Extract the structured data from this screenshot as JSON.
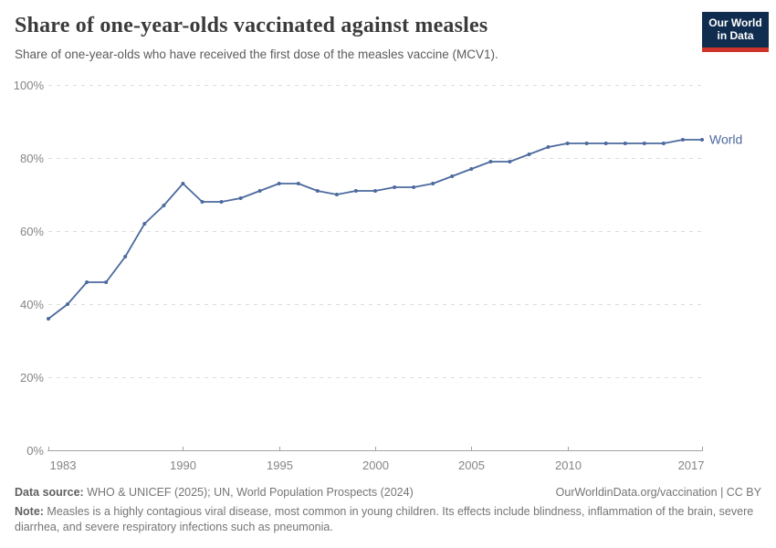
{
  "header": {
    "title": "Share of one-year-olds vaccinated against measles",
    "subtitle": "Share of one-year-olds who have received the first dose of the measles vaccine (MCV1).",
    "logo": {
      "line1": "Our World",
      "line2": "in Data"
    }
  },
  "chart_data": {
    "type": "line",
    "title": "Share of one-year-olds vaccinated against measles",
    "xlabel": "",
    "ylabel": "",
    "xlim": [
      1983,
      2017
    ],
    "ylim": [
      0,
      100
    ],
    "x_ticks": [
      1983,
      1990,
      1995,
      2000,
      2005,
      2010,
      2017
    ],
    "y_ticks": [
      0,
      20,
      40,
      60,
      80,
      100
    ],
    "y_tick_suffix": "%",
    "grid": "horizontal-dashed",
    "legend": "series-end-label",
    "x": [
      1983,
      1984,
      1985,
      1986,
      1987,
      1988,
      1989,
      1990,
      1991,
      1992,
      1993,
      1994,
      1995,
      1996,
      1997,
      1998,
      1999,
      2000,
      2001,
      2002,
      2003,
      2004,
      2005,
      2006,
      2007,
      2008,
      2009,
      2010,
      2011,
      2012,
      2013,
      2014,
      2015,
      2016,
      2017
    ],
    "series": [
      {
        "name": "World",
        "color": "#4c6a9e",
        "values": [
          36,
          40,
          46,
          46,
          53,
          62,
          67,
          73,
          68,
          68,
          69,
          71,
          73,
          73,
          71,
          70,
          71,
          71,
          72,
          72,
          73,
          75,
          77,
          79,
          79,
          81,
          83,
          84,
          84,
          84,
          84,
          84,
          84,
          85,
          85
        ]
      }
    ]
  },
  "footer": {
    "datasource_label": "Data source:",
    "datasource_text": " WHO & UNICEF (2025); UN, World Population Prospects (2024)",
    "link": "OurWorldinData.org/vaccination | CC BY",
    "note_label": "Note:",
    "note_text": " Measles is a highly contagious viral disease, most common in young children. Its effects include blindness, inflammation of the brain, severe diarrhea, and severe respiratory infections such as pneumonia."
  },
  "colors": {
    "series_line": "#4c6a9e",
    "logo_bg": "#102d4f",
    "logo_accent": "#ce342b",
    "grid": "#dddddd",
    "axis": "#a3a3a3",
    "axis_text": "#858585",
    "title_text": "#3b3b3b",
    "subtitle_text": "#5b5b5b",
    "footer_text": "#757575"
  }
}
